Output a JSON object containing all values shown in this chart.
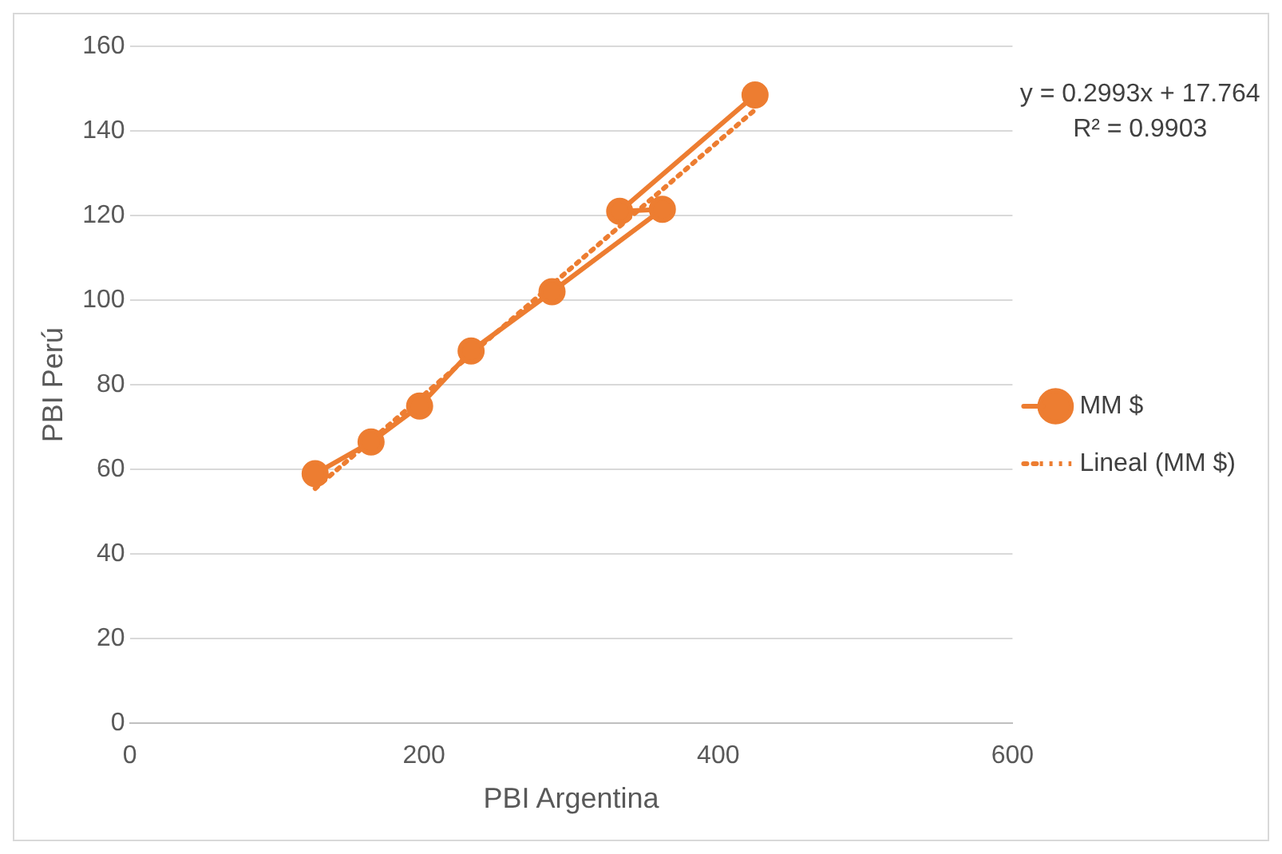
{
  "chart_data": {
    "type": "line",
    "xlabel": "PBI Argentina",
    "ylabel": "PBI Perú",
    "xlim": [
      0,
      600
    ],
    "xticks": [
      0,
      200,
      400,
      600
    ],
    "ylim": [
      0,
      160
    ],
    "yticks": [
      0,
      20,
      40,
      60,
      80,
      100,
      120,
      140,
      160
    ],
    "grid": "y",
    "legend": "right",
    "annotations": [
      "y = 0.2993x + 17.764",
      "R² = 0.9903"
    ],
    "series": [
      {
        "name": "MM $",
        "color": "#ed7d31",
        "marker": "circle",
        "line_style": "solid",
        "x": [
          126,
          164,
          197,
          232,
          287,
          362,
          333,
          425
        ],
        "values": [
          59,
          66.5,
          75,
          88,
          102,
          121.5,
          121,
          148.5
        ]
      },
      {
        "name": "Lineal (MM $)",
        "color": "#ed7d31",
        "type": "line",
        "marker": "none",
        "line_style": "dotted",
        "x": [
          126,
          425
        ],
        "values": [
          55.5,
          145
        ]
      }
    ]
  }
}
